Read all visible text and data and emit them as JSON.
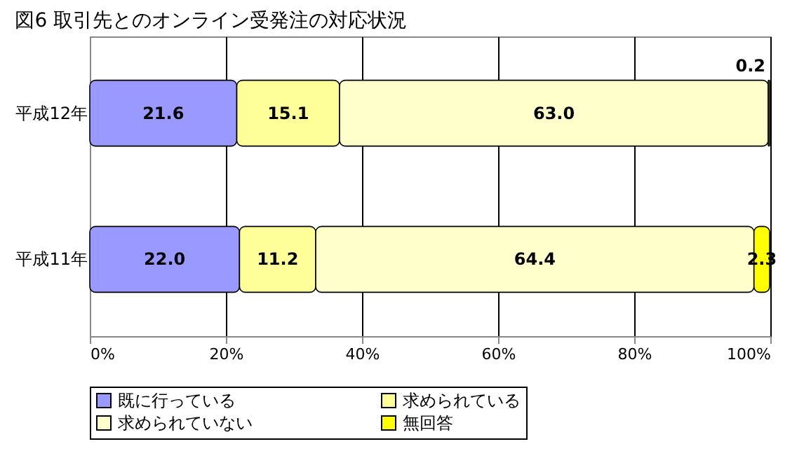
{
  "chart_data": {
    "type": "bar",
    "orientation": "horizontal",
    "stacked": true,
    "title": "図6  取引先とのオンライン受発注の対応状況",
    "categories": [
      "平成12年",
      "平成11年"
    ],
    "series": [
      {
        "name": "既に行っている",
        "color": "#9999ff",
        "values": [
          21.6,
          22.0
        ],
        "value_labels": [
          "21.6",
          "22.0"
        ]
      },
      {
        "name": "求められている",
        "color": "#ffff99",
        "values": [
          15.1,
          11.2
        ],
        "value_labels": [
          "15.1",
          "11.2"
        ]
      },
      {
        "name": "求められていない",
        "color": "#ffffcc",
        "values": [
          63.0,
          64.4
        ],
        "value_labels": [
          "63.0",
          "64.4"
        ]
      },
      {
        "name": "無回答",
        "color": "#ffff00",
        "values": [
          0.2,
          2.3
        ],
        "value_labels": [
          "0.2",
          "2.3"
        ]
      }
    ],
    "xlim": [
      0,
      100
    ],
    "xticks": [
      {
        "value": 0,
        "label": "0%"
      },
      {
        "value": 20,
        "label": "20%"
      },
      {
        "value": 40,
        "label": "40%"
      },
      {
        "value": 60,
        "label": "60%"
      },
      {
        "value": 80,
        "label": "80%"
      },
      {
        "value": 100,
        "label": "100%"
      }
    ],
    "grid": "x",
    "legend": "bottom"
  }
}
